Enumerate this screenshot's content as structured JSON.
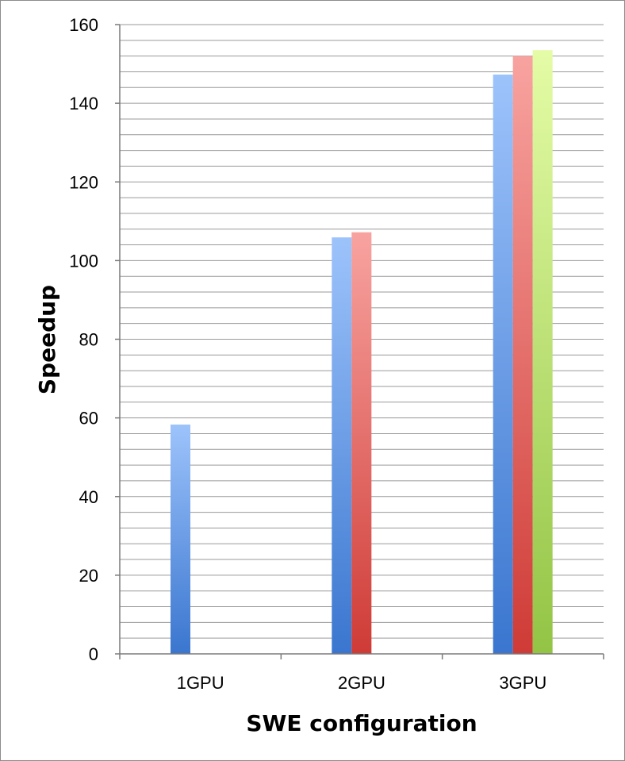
{
  "chart_data": {
    "type": "bar",
    "categories": [
      "1GPU",
      "2GPU",
      "3GPU"
    ],
    "series": [
      {
        "values": [
          58.3,
          105.9,
          147.3
        ],
        "color_top": "#9dc3fb",
        "color_bottom": "#3a76cf"
      },
      {
        "values": [
          null,
          107.2,
          152.0
        ],
        "color_top": "#f8a3a0",
        "color_bottom": "#cf3b36"
      },
      {
        "values": [
          null,
          null,
          153.5
        ],
        "color_top": "#e4fca6",
        "color_bottom": "#93c445"
      }
    ],
    "xlabel": "SWE configuration",
    "ylabel": "Speedup",
    "ylim": [
      0,
      160
    ],
    "yticks": [
      "0",
      "20",
      "40",
      "60",
      "80",
      "100",
      "120",
      "140",
      "160"
    ],
    "minor_grid_step": 4,
    "grid": true
  }
}
